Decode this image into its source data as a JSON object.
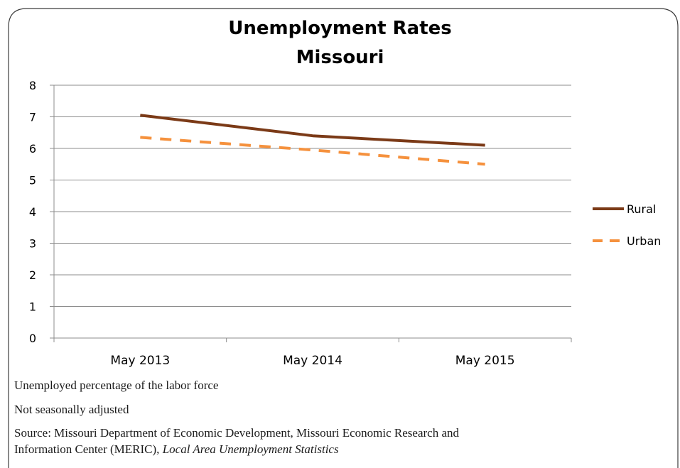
{
  "chart_data": {
    "type": "line",
    "title": [
      "Unemployment Rates",
      "Missouri"
    ],
    "categories": [
      "May 2013",
      "May 2014",
      "May 2015"
    ],
    "series": [
      {
        "name": "Rural",
        "values": [
          7.05,
          6.4,
          6.1
        ],
        "color": "#7b3a17",
        "style": "solid"
      },
      {
        "name": "Urban",
        "values": [
          6.35,
          5.95,
          5.5
        ],
        "color": "#f5913d",
        "style": "dashed"
      }
    ],
    "y_ticks": [
      "0",
      "1",
      "2",
      "3",
      "4",
      "5",
      "6",
      "7",
      "8"
    ],
    "ylim": [
      0,
      8
    ],
    "grid": true,
    "legend": "right"
  },
  "notes": {
    "line1": "Unemployed percentage of the labor force",
    "line2": "Not seasonally adjusted",
    "line3": "Source:  Missouri Department of Economic Development, Missouri Economic Research and",
    "line4_prefix": "Information Center (MERIC), ",
    "line4_italic": "Local Area Unemployment Statistics"
  }
}
